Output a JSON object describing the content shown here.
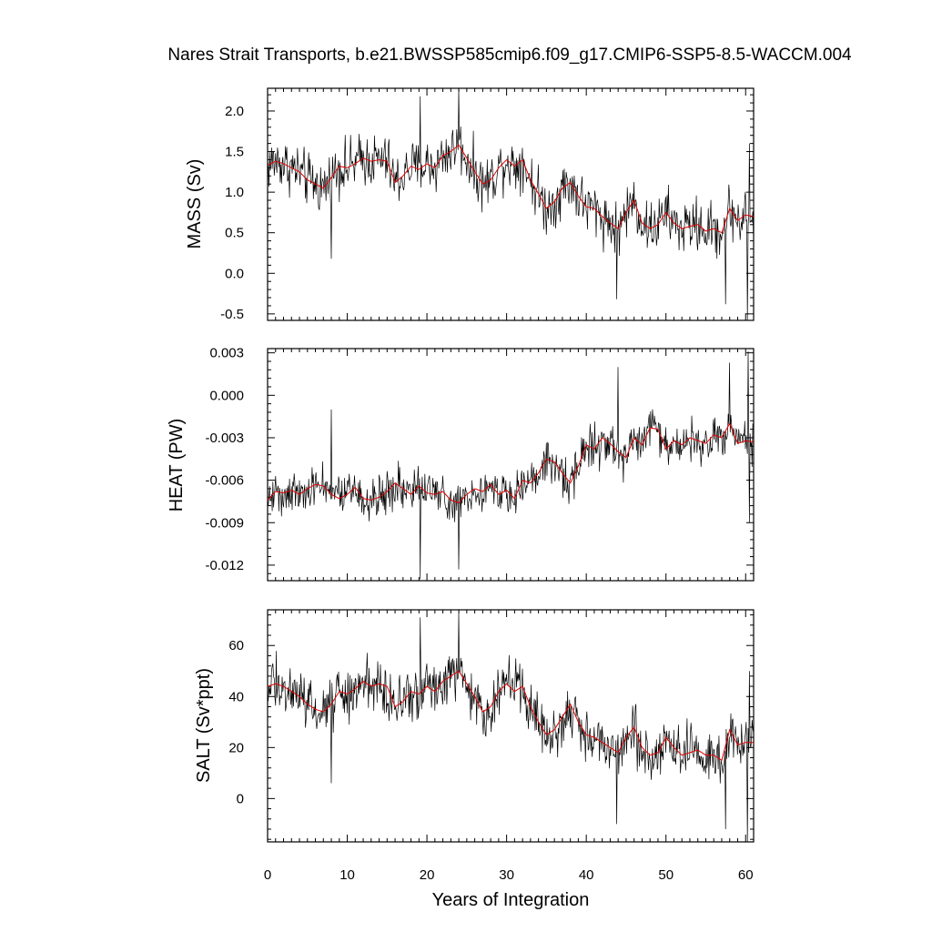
{
  "chart_data": {
    "title": "Nares Strait Transports, b.e21.BWSSP585cmip6.f09_g17.CMIP6-SSP5-8.5-WACCM.004",
    "xlabel": "Years of Integration",
    "xlim": [
      0,
      61
    ],
    "xticks": [
      0,
      10,
      20,
      30,
      40,
      50,
      60
    ],
    "x_tick_labels": [
      "0",
      "10",
      "20",
      "30",
      "40",
      "50",
      "60"
    ],
    "series_colors": {
      "monthly": "#000000",
      "smoothed": "#e00000"
    },
    "panels": [
      {
        "type": "line",
        "ylabel": "MASS (Sv)",
        "ylim": [
          -0.58,
          2.28
        ],
        "yticks": [
          -0.5,
          0.0,
          0.5,
          1.0,
          1.5,
          2.0
        ],
        "y_tick_labels": [
          "-0.5",
          "0.0",
          "0.5",
          "1.0",
          "1.5",
          "2.0"
        ],
        "series": [
          {
            "role": "smoothed",
            "x": [
              0,
              1,
              2,
              3,
              4,
              5,
              6,
              7,
              8,
              9,
              10,
              11,
              12,
              13,
              14,
              15,
              16,
              17,
              18,
              19,
              20,
              21,
              22,
              23,
              24,
              25,
              26,
              27,
              28,
              29,
              30,
              31,
              32,
              33,
              34,
              35,
              36,
              37,
              38,
              39,
              40,
              41,
              42,
              43,
              44,
              45,
              46,
              47,
              48,
              49,
              50,
              51,
              52,
              53,
              54,
              55,
              56,
              57,
              58,
              59,
              60,
              61
            ],
            "values": [
              1.33,
              1.38,
              1.35,
              1.3,
              1.25,
              1.15,
              1.1,
              1.05,
              1.18,
              1.32,
              1.3,
              1.35,
              1.42,
              1.38,
              1.4,
              1.38,
              1.12,
              1.2,
              1.32,
              1.28,
              1.35,
              1.3,
              1.45,
              1.5,
              1.58,
              1.42,
              1.25,
              1.1,
              1.15,
              1.3,
              1.4,
              1.32,
              1.4,
              1.15,
              0.98,
              0.8,
              0.88,
              1.05,
              1.12,
              0.95,
              0.82,
              0.8,
              0.7,
              0.62,
              0.55,
              0.75,
              0.9,
              0.62,
              0.55,
              0.6,
              0.75,
              0.62,
              0.55,
              0.58,
              0.6,
              0.52,
              0.55,
              0.5,
              0.8,
              0.65,
              0.72,
              0.7
            ]
          }
        ],
        "monthly": {
          "start": 0.0,
          "step": 0.0833,
          "mean_start": 1.35,
          "mean_end": 0.7,
          "spread": 0.35,
          "extremes": [
            [
              8.0,
              0.18
            ],
            [
              19.2,
              2.18
            ],
            [
              24.0,
              2.28
            ],
            [
              43.8,
              -0.32
            ],
            [
              57.5,
              -0.38
            ],
            [
              60.2,
              -0.58
            ],
            [
              60.5,
              1.6
            ]
          ]
        }
      },
      {
        "type": "line",
        "ylabel": "HEAT (PW)",
        "ylim": [
          -0.0131,
          0.0033
        ],
        "yticks": [
          -0.012,
          -0.009,
          -0.006,
          -0.003,
          0.0,
          0.003
        ],
        "y_tick_labels": [
          "-0.012",
          "-0.009",
          "-0.006",
          "-0.003",
          "0.000",
          "0.003"
        ],
        "series": [
          {
            "role": "smoothed",
            "x": [
              0,
              1,
              2,
              3,
              4,
              5,
              6,
              7,
              8,
              9,
              10,
              11,
              12,
              13,
              14,
              15,
              16,
              17,
              18,
              19,
              20,
              21,
              22,
              23,
              24,
              25,
              26,
              27,
              28,
              29,
              30,
              31,
              32,
              33,
              34,
              35,
              36,
              37,
              38,
              39,
              40,
              41,
              42,
              43,
              44,
              45,
              46,
              47,
              48,
              49,
              50,
              51,
              52,
              53,
              54,
              55,
              56,
              57,
              58,
              59,
              60,
              61
            ],
            "values": [
              -0.0074,
              -0.0068,
              -0.0069,
              -0.0067,
              -0.007,
              -0.0066,
              -0.0063,
              -0.0064,
              -0.007,
              -0.0073,
              -0.007,
              -0.0065,
              -0.0073,
              -0.0074,
              -0.0072,
              -0.0068,
              -0.0062,
              -0.0066,
              -0.007,
              -0.0064,
              -0.0069,
              -0.007,
              -0.0068,
              -0.0074,
              -0.0076,
              -0.007,
              -0.0066,
              -0.0068,
              -0.0063,
              -0.007,
              -0.0067,
              -0.0073,
              -0.006,
              -0.0062,
              -0.0055,
              -0.0045,
              -0.0047,
              -0.0055,
              -0.0062,
              -0.005,
              -0.0035,
              -0.0038,
              -0.003,
              -0.0034,
              -0.004,
              -0.0044,
              -0.003,
              -0.0035,
              -0.0023,
              -0.0024,
              -0.0038,
              -0.0032,
              -0.0035,
              -0.003,
              -0.0032,
              -0.0034,
              -0.0028,
              -0.003,
              -0.002,
              -0.0034,
              -0.0032,
              -0.0033
            ]
          }
        ],
        "monthly": {
          "start": 0.0,
          "step": 0.0833,
          "mean_start": -0.007,
          "mean_end": -0.0032,
          "spread": 0.0016,
          "extremes": [
            [
              8.0,
              -0.001
            ],
            [
              19.2,
              -0.013
            ],
            [
              24.0,
              -0.0123
            ],
            [
              44.0,
              0.002
            ],
            [
              58.0,
              0.0023
            ],
            [
              60.3,
              0.0031
            ],
            [
              60.5,
              -0.009
            ]
          ]
        }
      },
      {
        "type": "line",
        "ylabel": "SALT (Sv*ppt)",
        "ylim": [
          -17,
          74
        ],
        "yticks": [
          0,
          20,
          40,
          60
        ],
        "y_tick_labels": [
          "0",
          "20",
          "40",
          "60"
        ],
        "series": [
          {
            "role": "smoothed",
            "x": [
              0,
              1,
              2,
              3,
              4,
              5,
              6,
              7,
              8,
              9,
              10,
              11,
              12,
              13,
              14,
              15,
              16,
              17,
              18,
              19,
              20,
              21,
              22,
              23,
              24,
              25,
              26,
              27,
              28,
              29,
              30,
              31,
              32,
              33,
              34,
              35,
              36,
              37,
              38,
              39,
              40,
              41,
              42,
              43,
              44,
              45,
              46,
              47,
              48,
              49,
              50,
              51,
              52,
              53,
              54,
              55,
              56,
              57,
              58,
              59,
              60,
              61
            ],
            "values": [
              44,
              45,
              44,
              42,
              40,
              37,
              35,
              34,
              37,
              42,
              41,
              43,
              46,
              44,
              45,
              44,
              36,
              38,
              42,
              41,
              44,
              42,
              46,
              48,
              50,
              45,
              40,
              34,
              36,
              42,
              45,
              42,
              44,
              36,
              30,
              25,
              27,
              32,
              37,
              30,
              25,
              24,
              22,
              20,
              18,
              24,
              28,
              20,
              17,
              18,
              24,
              20,
              17,
              18,
              19,
              17,
              17,
              15,
              27,
              21,
              22,
              22
            ]
          }
        ],
        "monthly": {
          "start": 0.0,
          "step": 0.0833,
          "mean_start": 44,
          "mean_end": 21,
          "spread": 11,
          "extremes": [
            [
              8.0,
              6
            ],
            [
              19.2,
              71
            ],
            [
              24.0,
              73
            ],
            [
              43.8,
              -10
            ],
            [
              57.5,
              -12
            ],
            [
              60.2,
              -17
            ],
            [
              60.5,
              50
            ]
          ]
        }
      }
    ]
  }
}
